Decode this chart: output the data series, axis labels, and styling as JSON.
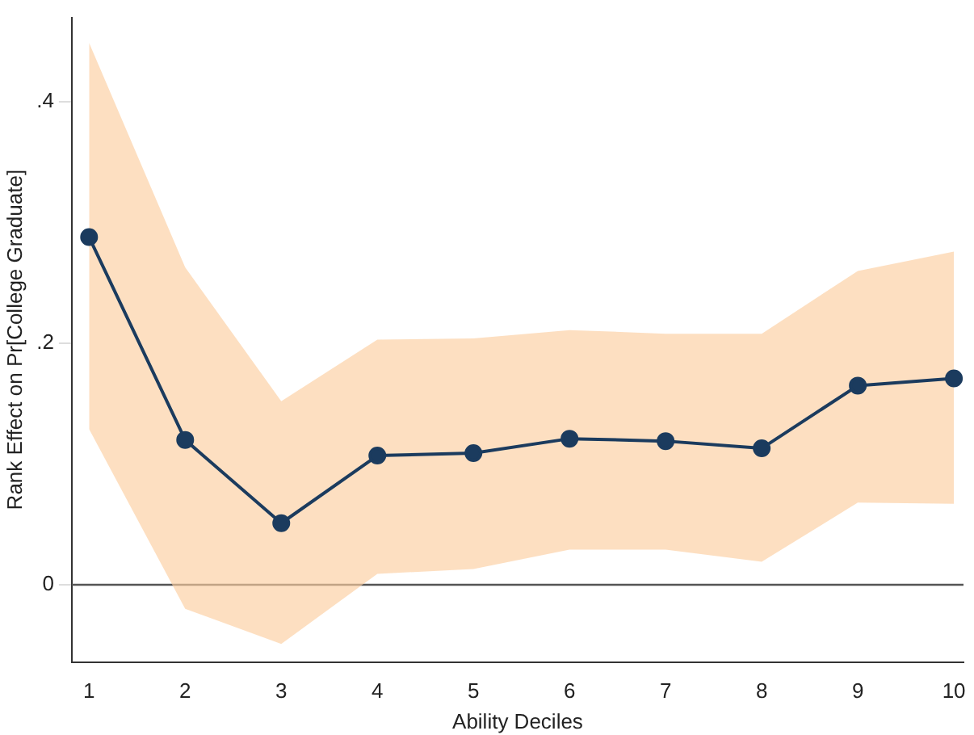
{
  "chart_data": {
    "type": "line",
    "xlabel": "Ability Deciles",
    "ylabel": "Rank Effect on Pr[College Graduate]",
    "x": [
      1,
      2,
      3,
      4,
      5,
      6,
      7,
      8,
      9,
      10
    ],
    "series": [
      {
        "color": "#1b3b5e",
        "values": [
          0.288,
          0.12,
          0.051,
          0.107,
          0.109,
          0.121,
          0.119,
          0.113,
          0.165,
          0.171
        ],
        "lower": [
          0.129,
          -0.02,
          -0.049,
          0.009,
          0.013,
          0.029,
          0.029,
          0.019,
          0.068,
          0.067
        ],
        "upper": [
          0.449,
          0.263,
          0.152,
          0.203,
          0.204,
          0.211,
          0.208,
          0.208,
          0.26,
          0.276
        ]
      }
    ],
    "xlim": [
      0.82,
      10.1
    ],
    "xticks": [
      1,
      2,
      3,
      4,
      5,
      6,
      7,
      8,
      9,
      10
    ],
    "ylim": [
      -0.064,
      0.47
    ],
    "yticks": [
      {
        "value": 0,
        "label": "0"
      },
      {
        "value": 0.2,
        "label": ".2"
      },
      {
        "value": 0.4,
        "label": ".4"
      }
    ],
    "ref_lines": [
      {
        "axis": "y",
        "value": 0,
        "color": "#555555"
      }
    ],
    "marker": "circle",
    "line_style": "solid",
    "grid": false,
    "legend": false
  }
}
